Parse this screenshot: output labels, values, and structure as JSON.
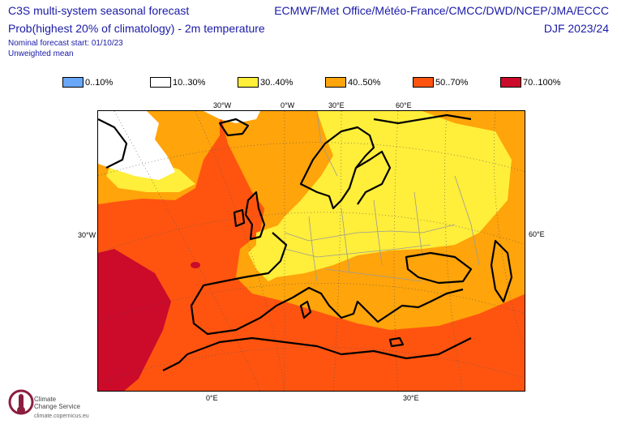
{
  "header": {
    "title_left": "C3S multi-system seasonal forecast",
    "subtitle_left": "Prob(highest 20% of climatology) - 2m temperature",
    "nominal_start": "Nominal forecast start: 01/10/23",
    "weighting": "Unweighted mean",
    "title_right": "ECMWF/Met Office/Météo-France/CMCC/DWD/NCEP/JMA/ECCC",
    "season": "DJF 2023/24"
  },
  "legend": [
    {
      "label": "0..10%",
      "color": "#6aa7f7"
    },
    {
      "label": "10..30%",
      "color": "#ffffff"
    },
    {
      "label": "30..40%",
      "color": "#ffee3a"
    },
    {
      "label": "40..50%",
      "color": "#ffa40a"
    },
    {
      "label": "50..70%",
      "color": "#ff5410"
    },
    {
      "label": "70..100%",
      "color": "#cc0a2a"
    }
  ],
  "map": {
    "top_labels": [
      "30°W",
      "0°W",
      "30°E",
      "60°E"
    ],
    "bottom_labels": [
      "0°E",
      "30°E"
    ],
    "left_label": "30°W",
    "right_label": "60°E"
  },
  "logo": {
    "name_line1": "Climate",
    "name_line2": "Change Service",
    "url": "climate.copernicus.eu"
  }
}
